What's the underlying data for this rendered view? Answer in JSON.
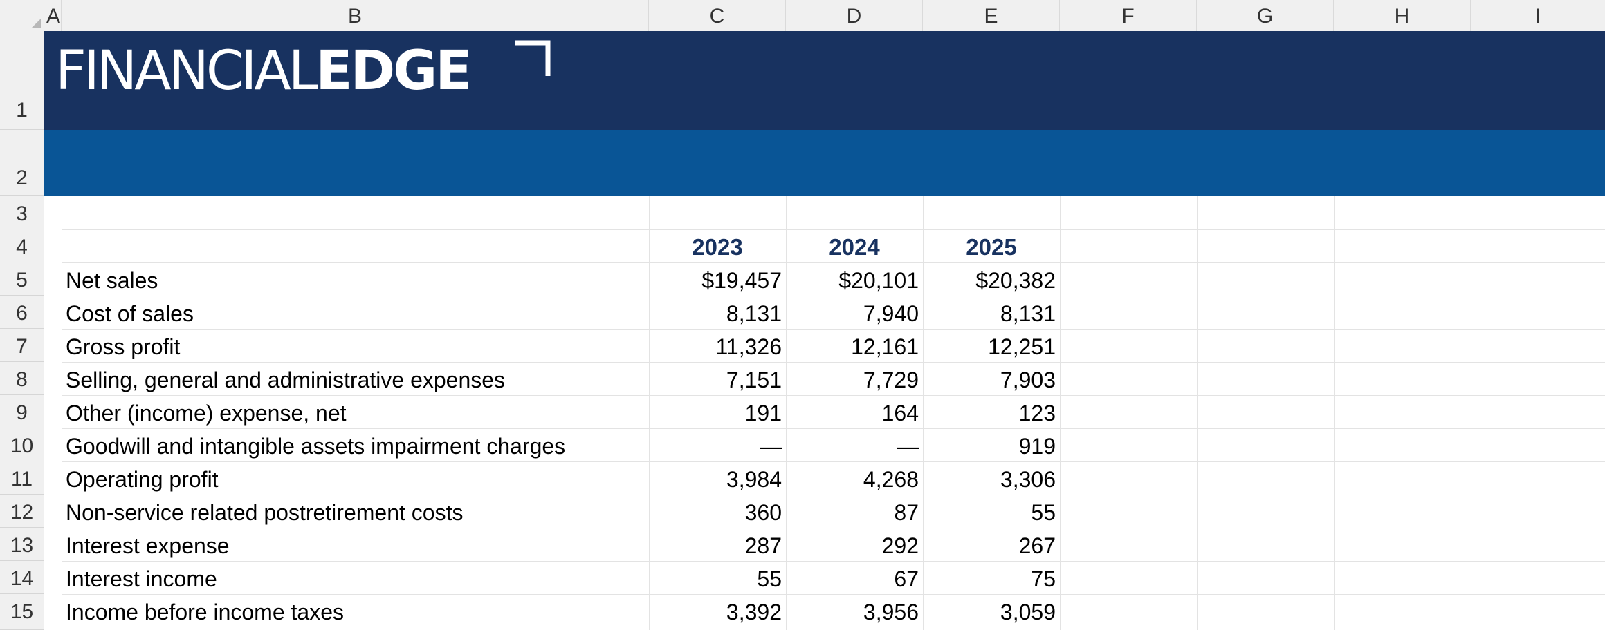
{
  "column_headers": [
    "A",
    "B",
    "C",
    "D",
    "E",
    "F",
    "G",
    "H",
    "I"
  ],
  "row_numbers": [
    "1",
    "2",
    "3",
    "4",
    "5",
    "6",
    "7",
    "8",
    "9",
    "10",
    "11",
    "12",
    "13",
    "14",
    "15"
  ],
  "logo": {
    "text_light": "FINANCIAL",
    "text_bold": "EDGE",
    "colors": {
      "banner_top": "#183260",
      "banner_bottom": "#095596"
    }
  },
  "table": {
    "years": [
      "2023",
      "2024",
      "2025"
    ],
    "rows": [
      {
        "label": "Net sales",
        "values": [
          "$19,457",
          "$20,101",
          "$20,382"
        ]
      },
      {
        "label": "Cost of sales",
        "values": [
          "8,131",
          "7,940",
          "8,131"
        ]
      },
      {
        "label": "Gross profit",
        "values": [
          "11,326",
          "12,161",
          "12,251"
        ]
      },
      {
        "label": "Selling, general and administrative expenses",
        "values": [
          "7,151",
          "7,729",
          "7,903"
        ]
      },
      {
        "label": "Other (income) expense, net",
        "values": [
          "191",
          "164",
          "123"
        ]
      },
      {
        "label": "Goodwill and intangible assets impairment charges",
        "values": [
          "—",
          "—",
          "919"
        ]
      },
      {
        "label": "Operating profit",
        "values": [
          "3,984",
          "4,268",
          "3,306"
        ]
      },
      {
        "label": "Non-service related postretirement costs",
        "values": [
          "360",
          "87",
          "55"
        ]
      },
      {
        "label": "Interest expense",
        "values": [
          "287",
          "292",
          "267"
        ]
      },
      {
        "label": "Interest income",
        "values": [
          "55",
          "67",
          "75"
        ]
      },
      {
        "label": "Income before income taxes",
        "values": [
          "3,392",
          "3,956",
          "3,059"
        ]
      }
    ]
  }
}
